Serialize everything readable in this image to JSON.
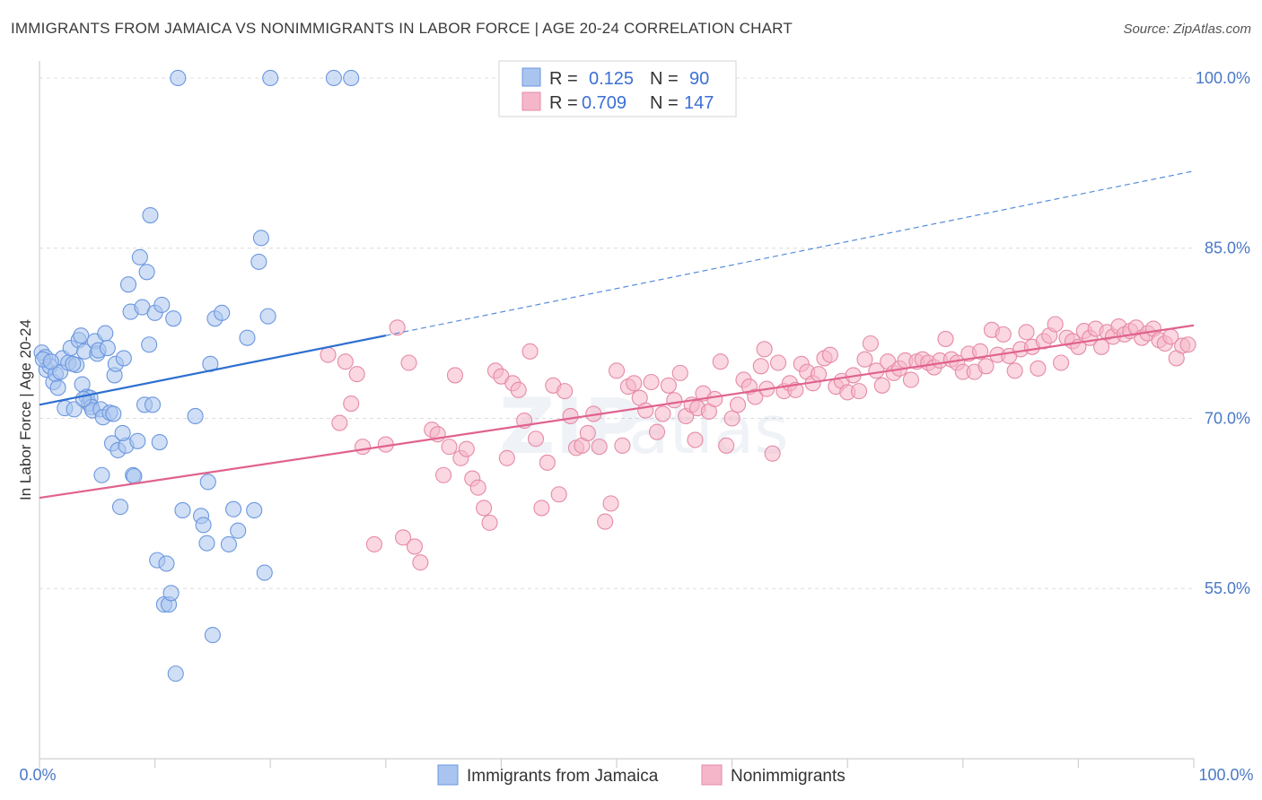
{
  "header": {
    "title": "IMMIGRANTS FROM JAMAICA VS NONIMMIGRANTS IN LABOR FORCE | AGE 20-24 CORRELATION CHART",
    "source": "Source: ZipAtlas.com"
  },
  "colors": {
    "blue_fill": "#a9c4ef",
    "blue_stroke": "#6b97df",
    "blue_line": "#2d6fd0",
    "pink_fill": "#f5b6c9",
    "pink_stroke": "#e68aa7",
    "pink_line": "#e0628e",
    "grid": "#dcdcdc",
    "tick_label": "#4a78c6"
  },
  "chart_data": {
    "type": "scatter",
    "title": "IMMIGRANTS FROM JAMAICA VS NONIMMIGRANTS IN LABOR FORCE | AGE 20-24 CORRELATION CHART",
    "xlabel": "",
    "ylabel": "In Labor Force | Age 20-24",
    "xlim": [
      0,
      100
    ],
    "ylim": [
      40,
      101.5
    ],
    "x_tick_labels": [
      "0.0%",
      "100.0%"
    ],
    "y_ticks": [
      55,
      70,
      85,
      100
    ],
    "y_tick_labels": [
      "55.0%",
      "70.0%",
      "85.0%",
      "100.0%"
    ],
    "grid": true,
    "legend": {
      "placement": "top-center",
      "entries": [
        {
          "r_label": "R =",
          "r_value": "0.125",
          "n_label": "N =",
          "n_value": "90"
        },
        {
          "r_label": "R =",
          "r_value": "0.709",
          "n_label": "N =",
          "n_value": "147"
        }
      ]
    },
    "series": [
      {
        "name": "Immigrants from Jamaica",
        "color": "#a9c4ef",
        "trend": {
          "x": [
            0,
            30
          ],
          "y": [
            71.2,
            77.3
          ],
          "dashed_extension_to": [
            100,
            91.8
          ]
        },
        "points": [
          [
            0.2,
            75.8
          ],
          [
            0.5,
            75.4
          ],
          [
            0.6,
            74.3
          ],
          [
            0.9,
            74.6
          ],
          [
            1.2,
            73.2
          ],
          [
            1.4,
            73.9
          ],
          [
            1.6,
            72.7
          ],
          [
            1.8,
            74.1
          ],
          [
            2.0,
            75.3
          ],
          [
            2.2,
            70.9
          ],
          [
            2.5,
            74.9
          ],
          [
            2.7,
            76.2
          ],
          [
            3.0,
            70.8
          ],
          [
            3.2,
            74.7
          ],
          [
            3.4,
            76.9
          ],
          [
            3.6,
            77.3
          ],
          [
            3.7,
            73.0
          ],
          [
            3.9,
            75.9
          ],
          [
            4.1,
            71.9
          ],
          [
            4.3,
            71.3
          ],
          [
            4.4,
            71.8
          ],
          [
            4.5,
            71.0
          ],
          [
            4.6,
            70.7
          ],
          [
            4.8,
            76.8
          ],
          [
            5.0,
            75.7
          ],
          [
            5.1,
            76.0
          ],
          [
            5.3,
            70.8
          ],
          [
            5.5,
            70.1
          ],
          [
            5.7,
            77.5
          ],
          [
            5.9,
            76.2
          ],
          [
            6.1,
            70.5
          ],
          [
            6.3,
            67.8
          ],
          [
            6.5,
            73.8
          ],
          [
            6.6,
            74.8
          ],
          [
            6.8,
            67.2
          ],
          [
            7.0,
            62.2
          ],
          [
            7.3,
            75.3
          ],
          [
            7.5,
            67.6
          ],
          [
            7.7,
            81.8
          ],
          [
            7.9,
            79.4
          ],
          [
            8.1,
            65.0
          ],
          [
            8.2,
            64.9
          ],
          [
            8.5,
            68.0
          ],
          [
            8.7,
            84.2
          ],
          [
            8.9,
            79.8
          ],
          [
            9.1,
            71.2
          ],
          [
            9.3,
            82.9
          ],
          [
            9.5,
            76.5
          ],
          [
            9.6,
            87.9
          ],
          [
            10.0,
            79.3
          ],
          [
            10.2,
            57.5
          ],
          [
            10.4,
            67.9
          ],
          [
            10.6,
            80.0
          ],
          [
            10.8,
            53.6
          ],
          [
            11.0,
            57.2
          ],
          [
            11.2,
            53.6
          ],
          [
            11.4,
            54.6
          ],
          [
            11.6,
            78.8
          ],
          [
            11.8,
            47.5
          ],
          [
            12.0,
            100.0
          ],
          [
            13.5,
            70.2
          ],
          [
            14.0,
            61.4
          ],
          [
            14.2,
            60.6
          ],
          [
            14.5,
            59.0
          ],
          [
            14.6,
            64.4
          ],
          [
            14.8,
            74.8
          ],
          [
            15.0,
            50.9
          ],
          [
            15.2,
            78.8
          ],
          [
            15.8,
            79.3
          ],
          [
            16.8,
            62.0
          ],
          [
            17.2,
            60.1
          ],
          [
            18.0,
            77.1
          ],
          [
            19.0,
            83.8
          ],
          [
            19.2,
            85.9
          ],
          [
            19.5,
            56.4
          ],
          [
            19.8,
            79.0
          ],
          [
            20.0,
            100.0
          ],
          [
            25.5,
            100.0
          ],
          [
            27.0,
            100.0
          ],
          [
            0.3,
            75.2
          ],
          [
            1.0,
            75.0
          ],
          [
            2.9,
            74.8
          ],
          [
            6.4,
            70.4
          ],
          [
            7.2,
            68.7
          ],
          [
            3.8,
            71.7
          ],
          [
            9.8,
            71.2
          ],
          [
            5.4,
            65.0
          ],
          [
            12.4,
            61.9
          ],
          [
            16.4,
            58.9
          ],
          [
            18.6,
            61.9
          ]
        ]
      },
      {
        "name": "Nonimmigrants",
        "color": "#f5b6c9",
        "trend": {
          "x": [
            0,
            100
          ],
          "y": [
            63.0,
            78.2
          ]
        },
        "points": [
          [
            25.0,
            75.6
          ],
          [
            26.0,
            69.6
          ],
          [
            26.5,
            75.0
          ],
          [
            27.0,
            71.3
          ],
          [
            27.5,
            73.9
          ],
          [
            28.0,
            67.5
          ],
          [
            29.0,
            58.9
          ],
          [
            30.0,
            67.7
          ],
          [
            31.0,
            78.0
          ],
          [
            31.5,
            59.5
          ],
          [
            32.0,
            74.9
          ],
          [
            32.5,
            58.7
          ],
          [
            33.0,
            57.3
          ],
          [
            34.0,
            69.0
          ],
          [
            34.5,
            68.6
          ],
          [
            35.0,
            65.0
          ],
          [
            35.5,
            67.5
          ],
          [
            36.0,
            73.8
          ],
          [
            36.5,
            66.5
          ],
          [
            37.0,
            67.3
          ],
          [
            37.5,
            64.7
          ],
          [
            38.0,
            63.9
          ],
          [
            38.5,
            62.1
          ],
          [
            39.0,
            60.8
          ],
          [
            39.5,
            74.2
          ],
          [
            40.0,
            73.7
          ],
          [
            40.5,
            66.5
          ],
          [
            41.0,
            73.1
          ],
          [
            41.5,
            72.5
          ],
          [
            42.0,
            69.8
          ],
          [
            42.5,
            75.9
          ],
          [
            43.0,
            68.2
          ],
          [
            43.5,
            62.1
          ],
          [
            44.0,
            66.1
          ],
          [
            44.5,
            72.9
          ],
          [
            45.0,
            63.3
          ],
          [
            45.5,
            72.4
          ],
          [
            46.0,
            70.2
          ],
          [
            46.5,
            67.4
          ],
          [
            47.0,
            67.6
          ],
          [
            47.5,
            68.7
          ],
          [
            48.0,
            70.4
          ],
          [
            48.5,
            67.5
          ],
          [
            49.0,
            60.9
          ],
          [
            49.5,
            62.5
          ],
          [
            50.0,
            74.2
          ],
          [
            50.5,
            67.6
          ],
          [
            51.0,
            72.8
          ],
          [
            51.5,
            73.1
          ],
          [
            52.0,
            71.8
          ],
          [
            52.5,
            70.7
          ],
          [
            53.0,
            73.2
          ],
          [
            53.5,
            68.8
          ],
          [
            54.0,
            70.4
          ],
          [
            54.5,
            72.9
          ],
          [
            55.0,
            71.6
          ],
          [
            55.5,
            74.0
          ],
          [
            56.0,
            70.2
          ],
          [
            56.5,
            71.2
          ],
          [
            57.0,
            70.9
          ],
          [
            57.5,
            72.2
          ],
          [
            58.0,
            70.6
          ],
          [
            58.5,
            71.7
          ],
          [
            59.0,
            75.0
          ],
          [
            59.5,
            67.6
          ],
          [
            60.0,
            70.0
          ],
          [
            60.5,
            71.2
          ],
          [
            61.0,
            73.4
          ],
          [
            61.5,
            72.8
          ],
          [
            62.0,
            71.9
          ],
          [
            62.5,
            74.6
          ],
          [
            63.0,
            72.6
          ],
          [
            63.5,
            66.9
          ],
          [
            64.0,
            74.9
          ],
          [
            64.5,
            72.4
          ],
          [
            65.0,
            73.1
          ],
          [
            65.5,
            72.5
          ],
          [
            66.0,
            74.8
          ],
          [
            66.5,
            74.1
          ],
          [
            67.0,
            73.1
          ],
          [
            67.5,
            73.9
          ],
          [
            68.0,
            75.3
          ],
          [
            68.5,
            75.6
          ],
          [
            69.0,
            72.8
          ],
          [
            69.5,
            73.3
          ],
          [
            70.0,
            72.3
          ],
          [
            70.5,
            73.8
          ],
          [
            71.0,
            72.4
          ],
          [
            71.5,
            75.2
          ],
          [
            72.0,
            76.6
          ],
          [
            72.5,
            74.2
          ],
          [
            73.0,
            72.9
          ],
          [
            73.5,
            75.0
          ],
          [
            74.0,
            74.0
          ],
          [
            74.5,
            74.4
          ],
          [
            75.0,
            75.1
          ],
          [
            75.5,
            73.4
          ],
          [
            76.0,
            75.0
          ],
          [
            76.5,
            75.2
          ],
          [
            77.0,
            74.9
          ],
          [
            77.5,
            74.5
          ],
          [
            78.0,
            75.1
          ],
          [
            78.5,
            77.0
          ],
          [
            79.0,
            75.2
          ],
          [
            79.5,
            74.9
          ],
          [
            80.0,
            74.1
          ],
          [
            80.5,
            75.7
          ],
          [
            81.0,
            74.1
          ],
          [
            81.5,
            75.9
          ],
          [
            82.0,
            74.6
          ],
          [
            82.5,
            77.8
          ],
          [
            83.0,
            75.6
          ],
          [
            83.5,
            77.4
          ],
          [
            84.0,
            75.5
          ],
          [
            84.5,
            74.2
          ],
          [
            85.0,
            76.1
          ],
          [
            85.5,
            77.6
          ],
          [
            86.0,
            76.3
          ],
          [
            86.5,
            74.4
          ],
          [
            87.0,
            76.8
          ],
          [
            87.5,
            77.3
          ],
          [
            88.0,
            78.3
          ],
          [
            88.5,
            74.9
          ],
          [
            89.0,
            77.1
          ],
          [
            89.5,
            76.8
          ],
          [
            90.0,
            76.3
          ],
          [
            90.5,
            77.7
          ],
          [
            91.0,
            77.1
          ],
          [
            91.5,
            77.9
          ],
          [
            92.0,
            76.3
          ],
          [
            92.5,
            77.6
          ],
          [
            93.0,
            77.2
          ],
          [
            93.5,
            78.1
          ],
          [
            94.0,
            77.4
          ],
          [
            94.5,
            77.7
          ],
          [
            95.0,
            78.0
          ],
          [
            95.5,
            77.1
          ],
          [
            96.0,
            77.5
          ],
          [
            96.5,
            77.9
          ],
          [
            97.0,
            76.9
          ],
          [
            97.5,
            76.6
          ],
          [
            98.0,
            77.2
          ],
          [
            98.5,
            75.3
          ],
          [
            99.0,
            76.4
          ],
          [
            99.5,
            76.5
          ],
          [
            56.8,
            68.1
          ],
          [
            62.8,
            76.1
          ]
        ]
      }
    ]
  }
}
